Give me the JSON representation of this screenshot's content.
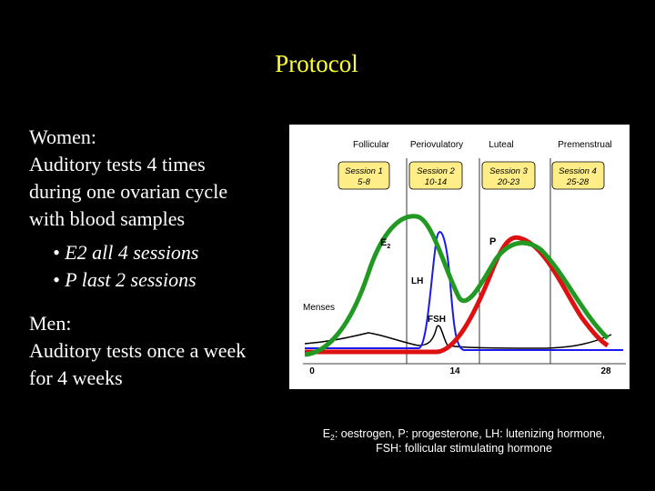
{
  "title": "Protocol",
  "women": {
    "heading": "Women:",
    "lines": [
      "Auditory tests 4 times",
      "during one ovarian cycle",
      "with blood samples"
    ],
    "bullets": [
      "• E2 all 4 sessions",
      "• P last 2 sessions"
    ]
  },
  "men": {
    "heading": "Men:",
    "lines": [
      "Auditory tests once a week",
      "for 4 weeks"
    ]
  },
  "figure": {
    "phases": [
      "Follicular",
      "Periovulatory",
      "Luteal",
      "Premenstrual"
    ],
    "sessions": [
      {
        "name": "Session 1",
        "days": "5-8"
      },
      {
        "name": "Session 2",
        "days": "10-14"
      },
      {
        "name": "Session 3",
        "days": "20-23"
      },
      {
        "name": "Session 4",
        "days": "25-28"
      }
    ],
    "labels": {
      "e": "E",
      "e_sub": "2",
      "p": "P",
      "lh": "LH",
      "menses": "Menses",
      "fsh": "FSH"
    },
    "axis": [
      "0",
      "14",
      "28"
    ]
  },
  "caption": {
    "e": "E",
    "e_sub": "2",
    "line1": ": oestrogen, P: progesterone, LH: lutenizing hormone,",
    "line2": "FSH: follicular stimulating hormone"
  }
}
